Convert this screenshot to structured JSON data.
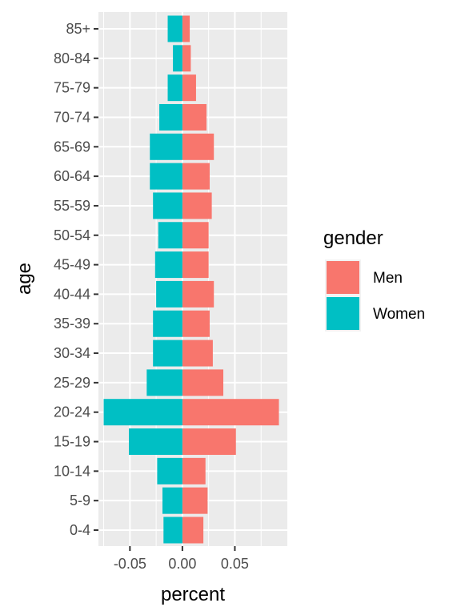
{
  "chart_data": {
    "type": "bar",
    "orientation": "horizontal",
    "xlabel": "percent",
    "ylabel": "age",
    "xlim": [
      -0.08,
      0.1
    ],
    "x_ticks": [
      -0.05,
      0.0,
      0.05
    ],
    "x_tick_labels": [
      "-0.05",
      "0.00",
      "0.05"
    ],
    "grid": true,
    "legend": {
      "title": "gender",
      "position": "right"
    },
    "categories": [
      "0-4",
      "5-9",
      "10-14",
      "15-19",
      "20-24",
      "25-29",
      "30-34",
      "35-39",
      "40-44",
      "45-49",
      "50-54",
      "55-59",
      "60-64",
      "65-69",
      "70-74",
      "75-79",
      "80-84",
      "85+"
    ],
    "series": [
      {
        "name": "Men",
        "color": "#F8766D",
        "values": [
          0.02,
          0.024,
          0.022,
          0.051,
          0.092,
          0.039,
          0.029,
          0.026,
          0.03,
          0.025,
          0.025,
          0.028,
          0.026,
          0.03,
          0.023,
          0.013,
          0.008,
          0.007
        ]
      },
      {
        "name": "Women",
        "color": "#00BFC4",
        "values": [
          -0.018,
          -0.019,
          -0.024,
          -0.051,
          -0.075,
          -0.034,
          -0.028,
          -0.028,
          -0.025,
          -0.026,
          -0.023,
          -0.028,
          -0.031,
          -0.031,
          -0.022,
          -0.014,
          -0.009,
          -0.014
        ]
      }
    ]
  }
}
